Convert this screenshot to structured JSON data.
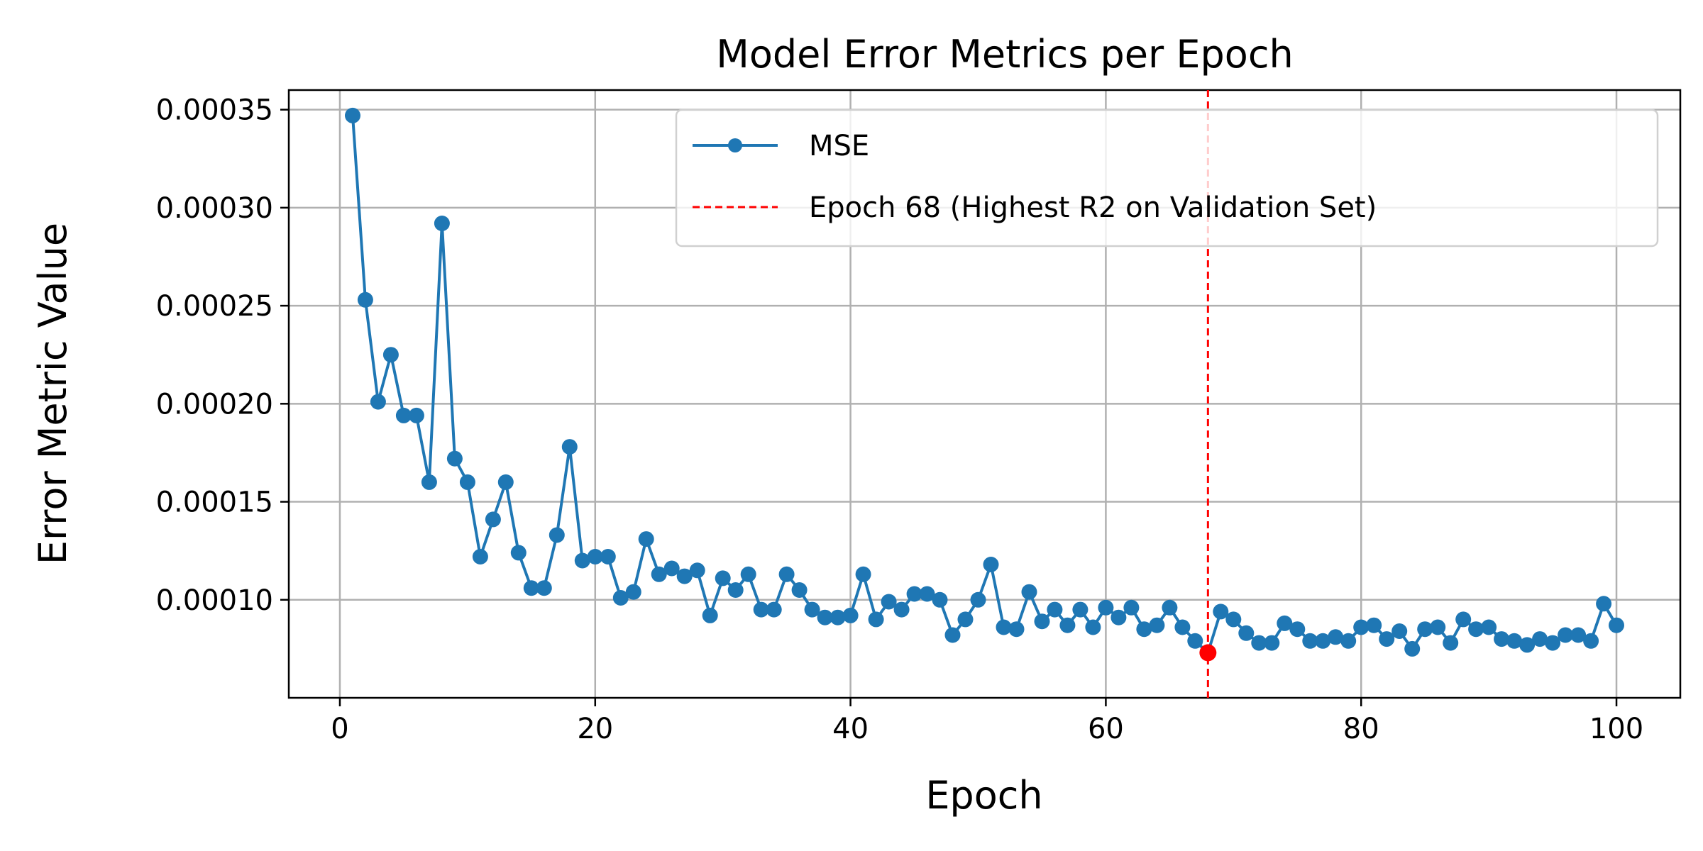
{
  "chart_data": {
    "type": "line",
    "title": "Model Error Metrics per Epoch",
    "xlabel": "Epoch",
    "ylabel": "Error Metric Value",
    "xlim": [
      -4,
      105
    ],
    "ylim": [
      5e-05,
      0.00036
    ],
    "x_ticks": [
      0,
      20,
      40,
      60,
      80,
      100
    ],
    "y_ticks": [
      0.0001,
      0.00015,
      0.0002,
      0.00025,
      0.0003,
      0.00035
    ],
    "x_tick_labels": [
      "0",
      "20",
      "40",
      "60",
      "80",
      "100"
    ],
    "y_tick_labels": [
      "0.00010",
      "0.00015",
      "0.00020",
      "0.00025",
      "0.00030",
      "0.00035"
    ],
    "grid": true,
    "legend_position": "top-right",
    "series": [
      {
        "name": "MSE",
        "color": "#1f77b4",
        "marker": "circle",
        "x": [
          1,
          2,
          3,
          4,
          5,
          6,
          7,
          8,
          9,
          10,
          11,
          12,
          13,
          14,
          15,
          16,
          17,
          18,
          19,
          20,
          21,
          22,
          23,
          24,
          25,
          26,
          27,
          28,
          29,
          30,
          31,
          32,
          33,
          34,
          35,
          36,
          37,
          38,
          39,
          40,
          41,
          42,
          43,
          44,
          45,
          46,
          47,
          48,
          49,
          50,
          51,
          52,
          53,
          54,
          55,
          56,
          57,
          58,
          59,
          60,
          61,
          62,
          63,
          64,
          65,
          66,
          67,
          68,
          69,
          70,
          71,
          72,
          73,
          74,
          75,
          76,
          77,
          78,
          79,
          80,
          81,
          82,
          83,
          84,
          85,
          86,
          87,
          88,
          89,
          90,
          91,
          92,
          93,
          94,
          95,
          96,
          97,
          98,
          99,
          100
        ],
        "values": [
          0.000347,
          0.000253,
          0.000201,
          0.000225,
          0.000194,
          0.000194,
          0.00016,
          0.000292,
          0.000172,
          0.00016,
          0.000122,
          0.000141,
          0.00016,
          0.000124,
          0.000106,
          0.000106,
          0.000133,
          0.000178,
          0.00012,
          0.000122,
          0.000122,
          0.000101,
          0.000104,
          0.000131,
          0.000113,
          0.000116,
          0.000112,
          0.000115,
          9.2e-05,
          0.000111,
          0.000105,
          0.000113,
          9.5e-05,
          9.5e-05,
          0.000113,
          0.000105,
          9.5e-05,
          9.1e-05,
          9.1e-05,
          9.2e-05,
          0.000113,
          9e-05,
          9.9e-05,
          9.5e-05,
          0.000103,
          0.000103,
          0.0001,
          8.2e-05,
          9e-05,
          0.0001,
          0.000118,
          8.6e-05,
          8.5e-05,
          0.000104,
          8.9e-05,
          9.5e-05,
          8.7e-05,
          9.5e-05,
          8.6e-05,
          9.6e-05,
          9.1e-05,
          9.6e-05,
          8.5e-05,
          8.7e-05,
          9.6e-05,
          8.6e-05,
          7.9e-05,
          7.3e-05,
          9.4e-05,
          9e-05,
          8.3e-05,
          7.8e-05,
          7.8e-05,
          8.8e-05,
          8.5e-05,
          7.9e-05,
          7.9e-05,
          8.1e-05,
          7.9e-05,
          8.6e-05,
          8.7e-05,
          8e-05,
          8.4e-05,
          7.5e-05,
          8.5e-05,
          8.6e-05,
          7.8e-05,
          9e-05,
          8.5e-05,
          8.6e-05,
          8e-05,
          7.9e-05,
          7.7e-05,
          8e-05,
          7.8e-05,
          8.2e-05,
          8.2e-05,
          7.9e-05,
          9.8e-05,
          8.7e-05
        ]
      }
    ],
    "highlight": {
      "name": "Epoch 68 (Highest R2 on Validation Set)",
      "x": 68,
      "y": 7.3e-05,
      "line_color": "#ff0000",
      "point_color": "#ff0000",
      "line_style": "dashed"
    }
  }
}
